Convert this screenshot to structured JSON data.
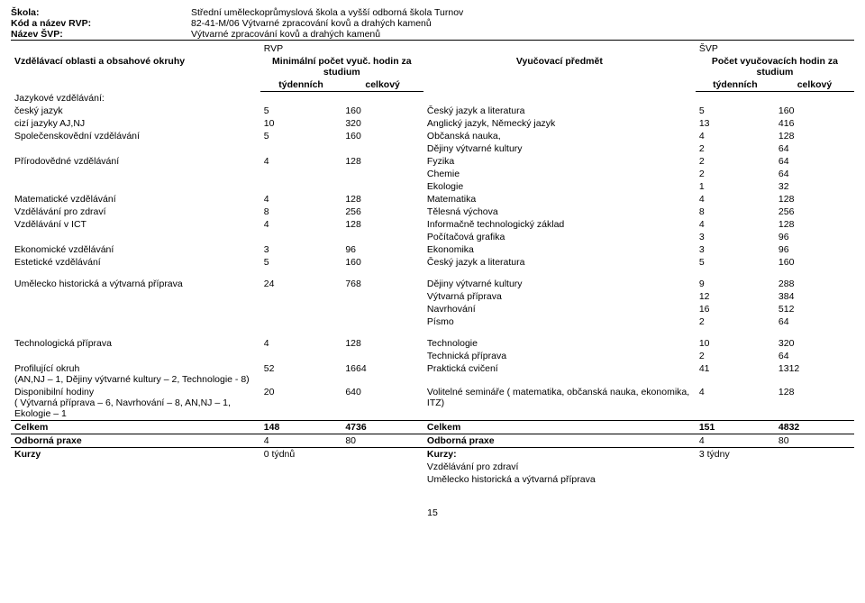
{
  "header": {
    "schoolLabel": "Škola:",
    "schoolVal": "Střední uměleckoprůmyslová škola a vyšší odborná škola Turnov",
    "codeLabel": "Kód a název RVP:",
    "codeVal": "82-41-M/06 Výtvarné zpracování kovů a drahých kamenů",
    "svpLabel": "Název ŠVP:",
    "svpVal": "Výtvarné zpracování kovů a drahých kamenů"
  },
  "thead": {
    "rvp": "RVP",
    "svp": "ŠVP",
    "areas": "Vzdělávací oblasti a obsahové okruhy",
    "minHours": "Minimální počet  vyuč. hodin za studium",
    "subject": "Vyučovací předmět",
    "subjHours": "Počet vyučovacích hodin za studium",
    "weekly": "týdenních",
    "total": "celkový"
  },
  "sections": {
    "lang": "Jazykové vzdělávání:"
  },
  "rows": [
    {
      "area": "český jazyk",
      "nt": "5",
      "nc": "160",
      "subjects": [
        {
          "n": "Český jazyk a literatura",
          "t": "5",
          "c": "160"
        }
      ]
    },
    {
      "area": "cizí jazyky  AJ,NJ",
      "nt": "10",
      "nc": "320",
      "subjects": [
        {
          "n": "Anglický jazyk, Německý jazyk",
          "t": "13",
          "c": "416"
        }
      ]
    },
    {
      "area": "Společenskovědní vzdělávání",
      "nt": "5",
      "nc": "160",
      "subjects": [
        {
          "n": "Občanská nauka,",
          "t": "4",
          "c": "128"
        },
        {
          "n": "Dějiny výtvarné kultury",
          "t": "2",
          "c": "64"
        }
      ]
    },
    {
      "area": "Přírodovědné vzdělávání",
      "nt": "4",
      "nc": "128",
      "subjects": [
        {
          "n": "Fyzika",
          "t": "2",
          "c": "64"
        },
        {
          "n": "Chemie",
          "t": "2",
          "c": "64"
        },
        {
          "n": "Ekologie",
          "t": "1",
          "c": "32"
        }
      ]
    },
    {
      "area": "Matematické vzdělávání",
      "nt": "4",
      "nc": "128",
      "subjects": [
        {
          "n": "Matematika",
          "t": "4",
          "c": "128"
        }
      ]
    },
    {
      "area": "Vzdělávání pro zdraví",
      "nt": "8",
      "nc": "256",
      "subjects": [
        {
          "n": "Tělesná výchova",
          "t": "8",
          "c": "256"
        }
      ]
    },
    {
      "area": "Vzdělávání v ICT",
      "nt": "4",
      "nc": "128",
      "subjects": [
        {
          "n": "Informačně technologický základ",
          "t": "4",
          "c": "128"
        },
        {
          "n": "Počítačová grafika",
          "t": "3",
          "c": "96"
        }
      ]
    },
    {
      "area": "Ekonomické vzdělávání",
      "nt": "3",
      "nc": "96",
      "subjects": [
        {
          "n": "Ekonomika",
          "t": "3",
          "c": "96"
        }
      ]
    },
    {
      "area": "Estetické vzdělávání",
      "nt": "5",
      "nc": "160",
      "subjects": [
        {
          "n": "Český jazyk a literatura",
          "t": "5",
          "c": "160"
        }
      ]
    }
  ],
  "block2": [
    {
      "area": "Umělecko historická a výtvarná příprava",
      "nt": "24",
      "nc": "768",
      "subjects": [
        {
          "n": "Dějiny výtvarné kultury",
          "t": "9",
          "c": "288"
        },
        {
          "n": "Výtvarná příprava",
          "t": "12",
          "c": "384"
        },
        {
          "n": "Navrhování",
          "t": "16",
          "c": "512"
        },
        {
          "n": "Písmo",
          "t": "2",
          "c": "64"
        }
      ]
    }
  ],
  "block3": [
    {
      "area": "Technologická příprava",
      "nt": "4",
      "nc": "128",
      "subjects": [
        {
          "n": "Technologie",
          "t": "10",
          "c": "320"
        },
        {
          "n": "Technická příprava",
          "t": "2",
          "c": "64"
        }
      ]
    },
    {
      "area": "Profilující okruh\n(AN,NJ – 1, Dějiny výtvarné kultury – 2, Technologie - 8)",
      "nt": "52",
      "nc": "1664",
      "subjects": [
        {
          "n": "Praktická cvičení",
          "t": "41",
          "c": "1312"
        }
      ]
    },
    {
      "area": "Disponibilní hodiny\n( Výtvarná příprava – 6, Navrhování – 8, AN,NJ – 1, Ekologie – 1",
      "nt": "20",
      "nc": "640",
      "subjects": [
        {
          "n": "Volitelné semináře ( matematika, občanská nauka, ekonomika, ITZ)",
          "t": "4",
          "c": "128"
        }
      ]
    }
  ],
  "totals": {
    "celkemL": "Celkem",
    "lt": "148",
    "lc": "4736",
    "celkemR": "Celkem",
    "rt": "151",
    "rc": "4832",
    "praxeL": "Odborná praxe",
    "plt": "4",
    "plc": "80",
    "praxeR": "Odborná praxe",
    "prt": "4",
    "prc": "80"
  },
  "kurzy": {
    "left": "Kurzy",
    "leftVal": "0 týdnů",
    "right": "Kurzy:",
    "rightVal": "3 týdny",
    "lines": [
      "Vzdělávání pro zdraví",
      "Umělecko historická a výtvarná příprava"
    ]
  },
  "pageNum": "15"
}
